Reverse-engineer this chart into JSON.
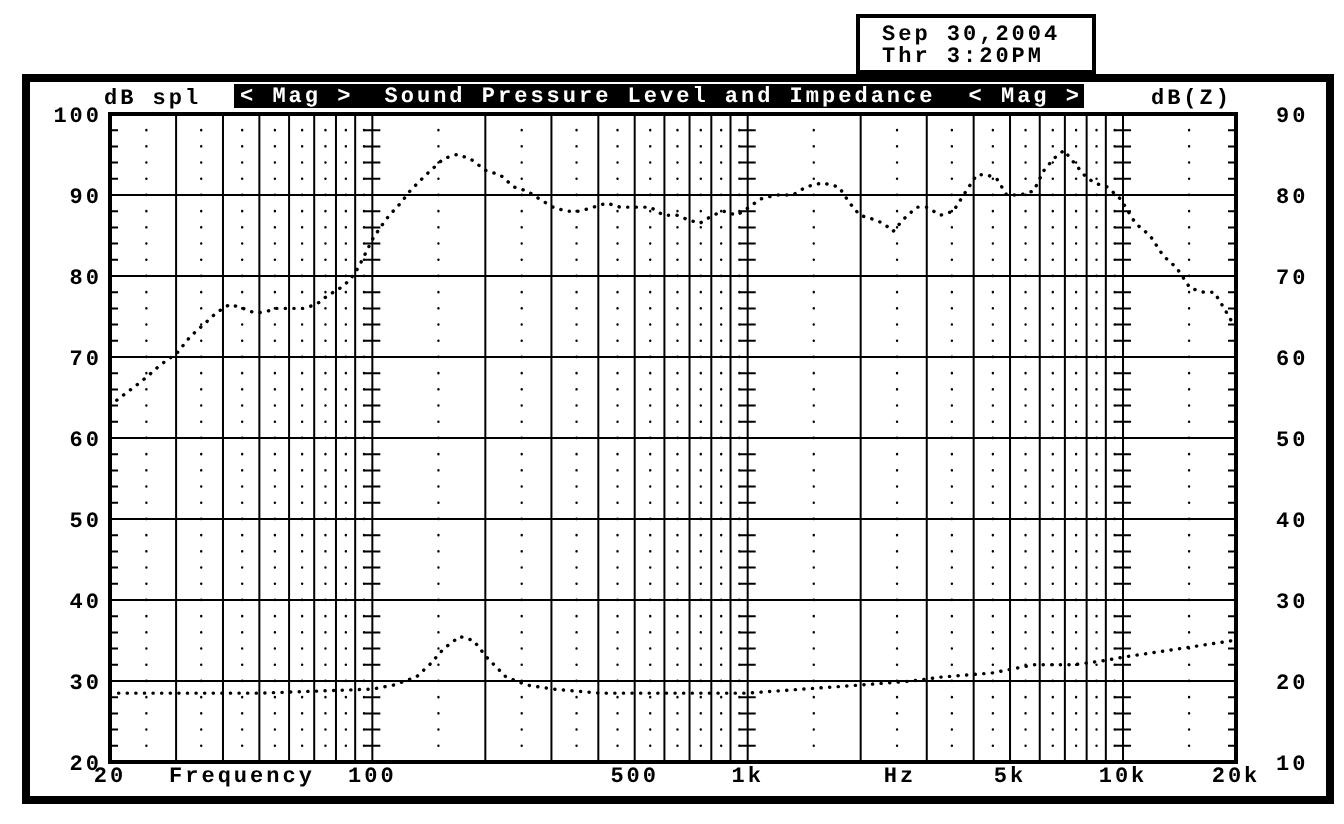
{
  "chart_data": {
    "type": "line",
    "title": "Sound Pressure Level and Impedance",
    "xlabel": "Frequency",
    "ylabel": "dB spl",
    "y2label": "dB(Z)",
    "annotations": [
      "< Mag >",
      "< Mag >",
      "Hz",
      "Sep 30,2004",
      "Thr 3:20PM"
    ],
    "log": "x",
    "grid": true,
    "line_style": "dotted",
    "xlim": [
      20,
      20000
    ],
    "xticks": [
      20,
      {
        "value": 30,
        "label": null
      },
      {
        "value": 40,
        "label": null
      },
      {
        "value": 50,
        "label": null
      },
      {
        "value": 60,
        "label": null
      },
      {
        "value": 70,
        "label": null
      },
      {
        "value": 80,
        "label": null
      },
      {
        "value": 90,
        "label": null
      },
      100,
      {
        "value": 200,
        "label": null
      },
      {
        "value": 300,
        "label": null
      },
      {
        "value": 400,
        "label": null
      },
      500,
      {
        "value": 600,
        "label": null
      },
      {
        "value": 700,
        "label": null
      },
      {
        "value": 800,
        "label": null
      },
      {
        "value": 900,
        "label": null
      },
      {
        "value": 1000,
        "label": "1k"
      },
      {
        "value": 2000,
        "label": null
      },
      {
        "value": 3000,
        "label": null
      },
      {
        "value": 4000,
        "label": null
      },
      {
        "value": 5000,
        "label": "5k"
      },
      {
        "value": 6000,
        "label": null
      },
      {
        "value": 7000,
        "label": null
      },
      {
        "value": 8000,
        "label": null
      },
      {
        "value": 9000,
        "label": null
      },
      {
        "value": 10000,
        "label": "10k"
      },
      {
        "value": 20000,
        "label": "20k"
      }
    ],
    "ylim": [
      20,
      100
    ],
    "yticks": [
      20,
      30,
      40,
      50,
      60,
      70,
      80,
      90,
      100
    ],
    "y2lim": [
      10,
      90
    ],
    "y2ticks": [
      10,
      20,
      30,
      40,
      50,
      60,
      70,
      80,
      90
    ],
    "series": [
      {
        "color": "#000000",
        "x": [
          20,
          21.3,
          23.5,
          25,
          27.2,
          30.2,
          32.7,
          35.5,
          38.5,
          41.7,
          45.3,
          48.2,
          51.2,
          55.6,
          60.4,
          65.5,
          71,
          75.6,
          82,
          87.2,
          91.6,
          96.4,
          100,
          105,
          111,
          119,
          126,
          139,
          155,
          168,
          182,
          201,
          219,
          238,
          258,
          279,
          303,
          329,
          357,
          388,
          421,
          457,
          496,
          550,
          597,
          648,
          688,
          745,
          808,
          862,
          935,
          1010,
          1080,
          1190,
          1320,
          1430,
          1580,
          1750,
          1870,
          1990,
          2160,
          2300,
          2440,
          2600,
          2820,
          3000,
          3260,
          3530,
          3760,
          4080,
          4340,
          4610,
          4900,
          5320,
          5780,
          6150,
          6540,
          6960,
          7400,
          7870,
          8370,
          9080,
          9850,
          10800,
          11800,
          12800,
          13900,
          15100,
          16400,
          17500,
          18600,
          19700
        ],
        "values": [
          64,
          65,
          66.5,
          67.5,
          69,
          70.5,
          72.5,
          74,
          75.5,
          76.5,
          76,
          75.5,
          75.5,
          76,
          76,
          76,
          76.5,
          77.5,
          78.5,
          79.5,
          81,
          83,
          84.5,
          86,
          87.5,
          89,
          90.5,
          92.5,
          94.5,
          95,
          94.5,
          93,
          92.5,
          91,
          90.5,
          89.5,
          88.5,
          88,
          88,
          88.5,
          89,
          88.5,
          88.5,
          88.5,
          87.5,
          87.5,
          87,
          86.5,
          87.5,
          88,
          87.5,
          88.5,
          89.5,
          90,
          90,
          91,
          91.5,
          91,
          89,
          87.5,
          87,
          86.5,
          85.5,
          87,
          88.5,
          88.5,
          87.5,
          88,
          90,
          92.5,
          92.5,
          92,
          90,
          90,
          90.5,
          93,
          94.5,
          95.5,
          94,
          92.5,
          91.5,
          91,
          89.5,
          86.5,
          85,
          82.5,
          81,
          78.5,
          78,
          78,
          76,
          74
        ]
      },
      {
        "color": "#000000",
        "axis": "y2",
        "x": [
          20,
          50,
          100,
          114,
          131,
          142,
          155,
          171,
          186,
          201,
          227,
          258,
          303,
          404,
          662,
          990,
          1990,
          2740,
          3300,
          4490,
          5780,
          7400,
          8850,
          10200,
          14200,
          19700
        ],
        "values": [
          18.5,
          18.5,
          19,
          19.5,
          20.5,
          22,
          24,
          25.5,
          25,
          23,
          20.5,
          19.5,
          19,
          18.5,
          18.5,
          18.5,
          19.5,
          20,
          20.5,
          21,
          22,
          22,
          22.5,
          23,
          24,
          25
        ]
      }
    ]
  }
}
